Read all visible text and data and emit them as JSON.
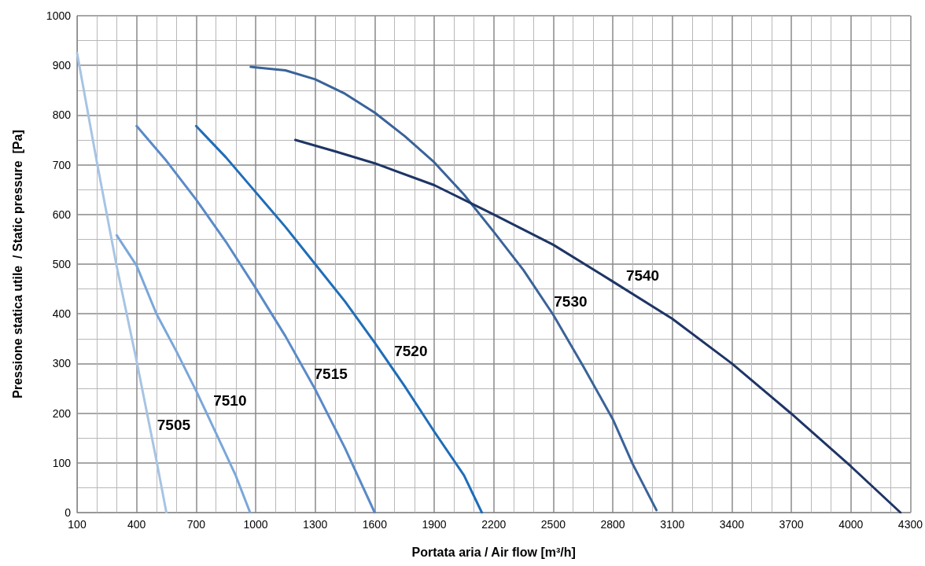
{
  "chart_data": {
    "type": "line",
    "xlabel": "Portata aria / Air flow [m³/h]",
    "ylabel": "Pressione statica utile  / Static pressure  [Pa]",
    "xlim": [
      100,
      4300
    ],
    "xticks": [
      100,
      400,
      700,
      1000,
      1300,
      1600,
      1900,
      2200,
      2500,
      2800,
      3100,
      3400,
      3700,
      4000,
      4300
    ],
    "ylim": [
      0,
      1000
    ],
    "yticks": [
      0,
      100,
      200,
      300,
      400,
      500,
      600,
      700,
      800,
      900,
      1000
    ],
    "grid": true,
    "legend": false,
    "marker": "none",
    "line_style": "solid",
    "series": [
      {
        "name": "7505",
        "color": "#a7c4e4",
        "x": [
          100,
          200,
          300,
          400,
          500,
          550
        ],
        "values": [
          925,
          705,
          495,
          305,
          105,
          0
        ]
      },
      {
        "name": "7510",
        "color": "#7aa7da",
        "x": [
          300,
          400,
          500,
          600,
          700,
          800,
          900,
          972
        ],
        "values": [
          558,
          497,
          400,
          325,
          245,
          160,
          74,
          0
        ]
      },
      {
        "name": "7515",
        "color": "#5a8ac8",
        "x": [
          400,
          550,
          700,
          850,
          1000,
          1150,
          1300,
          1450,
          1600
        ],
        "values": [
          778,
          708,
          630,
          545,
          452,
          355,
          248,
          130,
          0
        ]
      },
      {
        "name": "7520",
        "color": "#1f6db8",
        "x": [
          700,
          850,
          1000,
          1150,
          1300,
          1450,
          1600,
          1750,
          1900,
          2050,
          2140
        ],
        "values": [
          778,
          715,
          645,
          575,
          500,
          425,
          342,
          255,
          163,
          75,
          0
        ]
      },
      {
        "name": "7530",
        "color": "#3a6399",
        "x": [
          975,
          1000,
          1150,
          1300,
          1450,
          1600,
          1750,
          1900,
          2050,
          2200,
          2350,
          2500,
          2650,
          2800,
          2900,
          3020
        ],
        "values": [
          897,
          896,
          890,
          872,
          843,
          805,
          758,
          705,
          640,
          565,
          488,
          398,
          295,
          188,
          98,
          5
        ]
      },
      {
        "name": "7540",
        "color": "#1e3565",
        "x": [
          1200,
          1400,
          1600,
          1900,
          2200,
          2500,
          2800,
          3100,
          3400,
          3700,
          4000,
          4250
        ],
        "values": [
          750,
          727,
          703,
          659,
          600,
          539,
          465,
          390,
          300,
          199,
          93,
          0
        ]
      }
    ]
  }
}
